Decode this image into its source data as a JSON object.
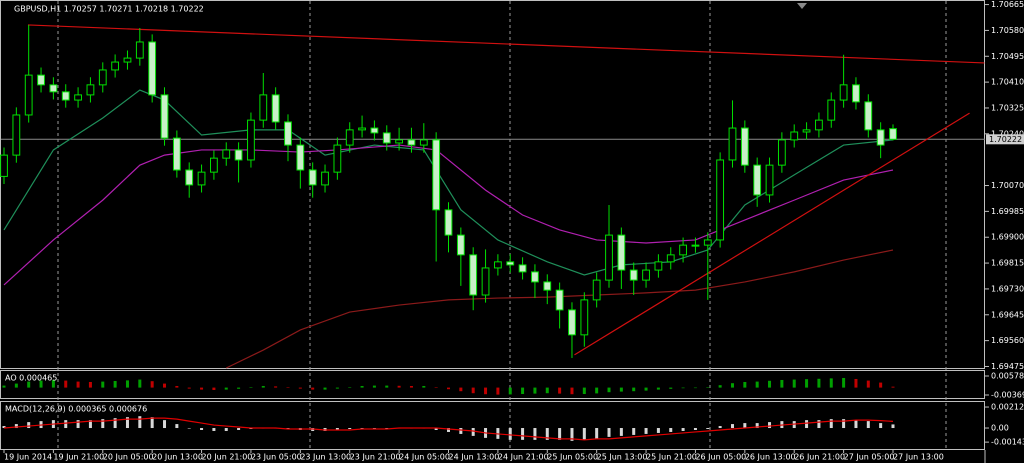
{
  "chart_data": [
    {
      "type": "candlestick",
      "title": "GBPUSD,H1 1.70257 1.70271 1.70218 1.70222",
      "categories": [
        "19 Jun 2014",
        null,
        null,
        null,
        "19 Jun 21:00",
        null,
        null,
        null,
        "20 Jun 05:00",
        null,
        null,
        null,
        "20 Jun 13:00",
        null,
        null,
        null,
        "20 Jun 21:00",
        null,
        null,
        null,
        "23 Jun 05:00",
        null,
        null,
        null,
        "23 Jun 13:00",
        null,
        null,
        null,
        "23 Jun 21:00",
        null,
        null,
        null,
        "24 Jun 05:00",
        null,
        null,
        null,
        "24 Jun 13:00",
        null,
        null,
        null,
        "24 Jun 21:00",
        null,
        null,
        null,
        "25 Jun 05:00",
        null,
        null,
        null,
        "25 Jun 13:00",
        null,
        null,
        null,
        "25 Jun 21:00",
        null,
        null,
        null,
        "26 Jun 05:00",
        null,
        null,
        null,
        "26 Jun 13:00",
        null,
        null,
        null,
        "26 Jun 21:00",
        null,
        null,
        null,
        "27 Jun 05:00",
        null,
        null,
        null,
        "27 Jun 13:00"
      ],
      "open": [
        1.701,
        1.7017,
        1.70302,
        1.70433,
        1.70401,
        1.70378,
        1.70351,
        1.70368,
        1.70401,
        1.7045,
        1.70476,
        1.70489,
        1.70542,
        1.70368,
        1.70226,
        1.70121,
        1.70072,
        1.70114,
        1.7016,
        1.70187,
        1.70154,
        1.70285,
        1.70368,
        1.70279,
        1.70203,
        1.70121,
        1.70072,
        1.70114,
        1.70203,
        1.70253,
        1.70259,
        1.70243,
        1.7021,
        1.7022,
        1.70203,
        1.7022,
        1.6999,
        1.69907,
        1.69842,
        1.6971,
        1.69799,
        1.69819,
        1.69809,
        1.69786,
        1.69753,
        1.69726,
        1.69661,
        1.69579,
        1.69694,
        1.69759,
        1.69907,
        1.69792,
        1.69759,
        1.69792,
        1.69819,
        1.69842,
        1.69874,
        1.69874,
        1.69891,
        1.70154,
        1.70259,
        1.70137,
        1.70039,
        1.70137,
        1.7022,
        1.70246,
        1.70253,
        1.70285,
        1.70351,
        1.70401,
        1.70345,
        1.70253,
        1.70257
      ],
      "high": [
        1.70195,
        1.70327,
        1.70598,
        1.70458,
        1.70426,
        1.70403,
        1.70393,
        1.70426,
        1.70475,
        1.70501,
        1.70514,
        1.70588,
        1.70567,
        1.70393,
        1.70251,
        1.70146,
        1.70139,
        1.70185,
        1.70212,
        1.70212,
        1.7031,
        1.7044,
        1.70393,
        1.70304,
        1.70228,
        1.70146,
        1.70139,
        1.70228,
        1.70278,
        1.703,
        1.70284,
        1.70268,
        1.7026,
        1.7026,
        1.70275,
        1.70245,
        1.70015,
        1.69932,
        1.69867,
        1.6986,
        1.69844,
        1.69844,
        1.69834,
        1.69811,
        1.69778,
        1.69751,
        1.69686,
        1.69719,
        1.69784,
        1.70006,
        1.69932,
        1.69817,
        1.69817,
        1.69844,
        1.69867,
        1.69899,
        1.69899,
        1.69916,
        1.70179,
        1.7035,
        1.70284,
        1.70162,
        1.70162,
        1.70245,
        1.70271,
        1.70278,
        1.7031,
        1.70376,
        1.705,
        1.70426,
        1.7037,
        1.70278,
        1.70271
      ],
      "low": [
        1.70075,
        1.70145,
        1.70277,
        1.70376,
        1.70353,
        1.70326,
        1.70326,
        1.70343,
        1.70376,
        1.70425,
        1.70451,
        1.70464,
        1.70343,
        1.70201,
        1.70096,
        1.7003,
        1.70047,
        1.70089,
        1.70135,
        1.7008,
        1.70129,
        1.7026,
        1.70254,
        1.7015,
        1.7006,
        1.7003,
        1.70047,
        1.70089,
        1.70178,
        1.70228,
        1.70218,
        1.70185,
        1.70185,
        1.70178,
        1.70178,
        1.6982,
        1.6985,
        1.6974,
        1.6966,
        1.69685,
        1.69774,
        1.69784,
        1.69761,
        1.697,
        1.6968,
        1.696,
        1.69503,
        1.6954,
        1.69669,
        1.69734,
        1.6973,
        1.6971,
        1.69734,
        1.69767,
        1.69794,
        1.69817,
        1.69849,
        1.69694,
        1.69866,
        1.70129,
        1.70112,
        1.7,
        1.70014,
        1.70112,
        1.70195,
        1.70221,
        1.70228,
        1.7026,
        1.70326,
        1.7032,
        1.70228,
        1.7016,
        1.70218
      ],
      "close": [
        1.7017,
        1.70302,
        1.70433,
        1.70401,
        1.70378,
        1.70351,
        1.70368,
        1.70401,
        1.7045,
        1.70476,
        1.70489,
        1.70542,
        1.70368,
        1.70226,
        1.70121,
        1.70072,
        1.70114,
        1.7016,
        1.70187,
        1.70154,
        1.70285,
        1.70368,
        1.70279,
        1.70203,
        1.70121,
        1.70072,
        1.70114,
        1.70203,
        1.70253,
        1.70259,
        1.70243,
        1.7021,
        1.7022,
        1.70203,
        1.7022,
        1.6999,
        1.69907,
        1.69842,
        1.6971,
        1.69799,
        1.69819,
        1.69809,
        1.69786,
        1.69753,
        1.69726,
        1.69661,
        1.69579,
        1.69694,
        1.69759,
        1.69907,
        1.69792,
        1.69759,
        1.69792,
        1.69819,
        1.69842,
        1.69874,
        1.69874,
        1.69891,
        1.70154,
        1.70259,
        1.70137,
        1.70039,
        1.70137,
        1.7022,
        1.70246,
        1.70253,
        1.70285,
        1.70351,
        1.70401,
        1.70345,
        1.70253,
        1.70203,
        1.70222
      ],
      "up_fill": "#000000",
      "down_fill": "#c8f0c8",
      "outline": "#00e000",
      "last_price": 1.70222,
      "ylim": [
        1.6947,
        1.7068
      ],
      "yticks": [
        1.70665,
        {
          "value": 1.7058,
          "label": "1.70580"
        },
        1.70495,
        {
          "value": 1.7041,
          "label": "1.70410"
        },
        1.70325,
        {
          "value": 1.7024,
          "label": "1.70240"
        },
        {
          "value": 1.7007,
          "label": "1.70070"
        },
        1.69985,
        {
          "value": 1.699,
          "label": "1.69900"
        },
        1.69815,
        {
          "value": 1.6973,
          "label": "1.69730"
        },
        1.69645,
        {
          "value": 1.6956,
          "label": "1.69560"
        },
        1.69475
      ],
      "overlays": [
        {
          "color": "#1f8f5a",
          "x": [
            0,
            4,
            8,
            11,
            13,
            16,
            20,
            23,
            26,
            30,
            34,
            37,
            40,
            44,
            47,
            50,
            54,
            57,
            60,
            64,
            68,
            72
          ],
          "values": [
            1.69924,
            1.70187,
            1.70292,
            1.70384,
            1.70351,
            1.70236,
            1.70253,
            1.70253,
            1.7017,
            1.70203,
            1.70187,
            1.6999,
            1.69891,
            1.69819,
            1.69776,
            1.69809,
            1.69819,
            1.69858,
            1.70006,
            1.70105,
            1.70203,
            1.7022
          ]
        },
        {
          "color": "#b020b0",
          "x": [
            0,
            4,
            8,
            11,
            13,
            16,
            20,
            24,
            27,
            32,
            35,
            39,
            42,
            45,
            48,
            52,
            56,
            58,
            61,
            64,
            68,
            72
          ],
          "values": [
            1.69743,
            1.69891,
            1.70022,
            1.70137,
            1.7017,
            1.70187,
            1.70187,
            1.7018,
            1.70187,
            1.70203,
            1.70187,
            1.70055,
            1.69973,
            1.69924,
            1.69891,
            1.69881,
            1.69891,
            1.69924,
            1.69973,
            1.70022,
            1.70088,
            1.70121
          ]
        },
        {
          "color": "#8b1a1a",
          "x": [
            18,
            21,
            24,
            28,
            32,
            36,
            40,
            44,
            48,
            52,
            56,
            60,
            64,
            68,
            72
          ],
          "values": [
            1.6947,
            1.69529,
            1.69595,
            1.69654,
            1.69677,
            1.69694,
            1.697,
            1.69703,
            1.6971,
            1.69717,
            1.69726,
            1.69753,
            1.69786,
            1.69825,
            1.69858
          ]
        }
      ],
      "trendlines": [
        {
          "color": "#d01010",
          "x": [
            1.94,
            79.4
          ],
          "values": [
            1.70598,
            1.70473
          ]
        },
        {
          "color": "#d01010",
          "x": [
            46.2,
            78.2
          ],
          "values": [
            1.69513,
            1.70308
          ]
        }
      ]
    },
    {
      "type": "bar",
      "title": "AO 0.000465",
      "up_color": "#00a000",
      "down_color": "#c00000",
      "values": [
        0.001,
        0.002,
        0.003,
        0.0035,
        0.0038,
        0.0035,
        0.003,
        0.0028,
        0.003,
        0.0033,
        0.0036,
        0.004,
        0.0032,
        0.002,
        0.0008,
        -0.0005,
        -0.001,
        -0.0012,
        -0.001,
        -0.0006,
        0.0002,
        0.0008,
        0.0006,
        0.0002,
        -0.0005,
        -0.001,
        -0.001,
        -0.0005,
        0.0002,
        0.0008,
        0.001,
        0.001,
        0.0009,
        0.0008,
        0.0008,
        0.0002,
        -0.0008,
        -0.0018,
        -0.0028,
        -0.0033,
        -0.0035,
        -0.0034,
        -0.0032,
        -0.003,
        -0.0028,
        -0.003,
        -0.0033,
        -0.0032,
        -0.0029,
        -0.0023,
        -0.002,
        -0.0018,
        -0.0015,
        -0.001,
        -0.0006,
        -0.0003,
        0,
        0.0002,
        0.0012,
        0.0022,
        0.0028,
        0.003,
        0.0034,
        0.0038,
        0.004,
        0.0042,
        0.0044,
        0.0046,
        0.0048,
        0.0043,
        0.0035,
        0.0025,
        0.000465
      ],
      "ylim": [
        -0.005194,
        0.008284
      ],
      "yticks": [
        0.005788,
        -0.003697
      ]
    },
    {
      "type": "macd",
      "title": "MACD(12,26,9) 0.000365 0.000676",
      "color": "#d8d8d8",
      "values": [
        0.0002,
        0.0004,
        0.0006,
        0.0007,
        0.0008,
        0.0008,
        0.0008,
        0.0008,
        0.0009,
        0.001,
        0.0011,
        0.0012,
        0.0011,
        0.0008,
        0.0004,
        0,
        -0.0002,
        -0.0003,
        -0.0003,
        -0.0002,
        -0.0001,
        0,
        0,
        -0.0001,
        -0.0002,
        -0.0003,
        -0.0003,
        -0.0002,
        -0.0001,
        0,
        0,
        0,
        0,
        0,
        0,
        -0.0002,
        -0.0004,
        -0.0006,
        -0.0008,
        -0.001,
        -0.0011,
        -0.0012,
        -0.0012,
        -0.0012,
        -0.0012,
        -0.0012,
        -0.0013,
        -0.0012,
        -0.0011,
        -0.0009,
        -0.0008,
        -0.0007,
        -0.0006,
        -0.0005,
        -0.0004,
        -0.0003,
        -0.0002,
        -0.0001,
        0.0002,
        0.0004,
        0.0005,
        0.0005,
        0.0006,
        0.0007,
        0.0007,
        0.0008,
        0.0008,
        0.0009,
        0.0009,
        0.0008,
        0.0007,
        0.0005,
        0.000365
      ],
      "signal": {
        "color": "#e00000",
        "values": [
          0,
          0.0001,
          0.0002,
          0.0003,
          0.0004,
          0.0005,
          0.0006,
          0.0007,
          0.0007,
          0.0008,
          0.0009,
          0.0009,
          0.001,
          0.001,
          0.0009,
          0.0007,
          0.0005,
          0.0003,
          0.0002,
          0.0001,
          0,
          0,
          0,
          -0.0001,
          -0.0001,
          -0.0001,
          -0.0002,
          -0.0002,
          -0.0002,
          -0.0001,
          -0.0001,
          -0.0001,
          0,
          0,
          0,
          0,
          -0.0001,
          -0.0002,
          -0.0003,
          -0.0005,
          -0.0006,
          -0.0007,
          -0.0008,
          -0.0009,
          -0.001,
          -0.0011,
          -0.0011,
          -0.0012,
          -0.0011,
          -0.0011,
          -0.001,
          -0.0009,
          -0.0008,
          -0.0007,
          -0.0006,
          -0.0005,
          -0.0004,
          -0.0003,
          -0.0002,
          -0.0001,
          0,
          0.0001,
          0.0002,
          0.0003,
          0.0004,
          0.0005,
          0.0006,
          0.0007,
          0.0007,
          0.0008,
          0.0008,
          0.00075,
          0.000676
        ]
      },
      "ylim": [
        -0.00223,
        0.00264
      ],
      "yticks": [
        0.002129,
        {
          "value": 0,
          "label": "0.00"
        },
        -0.00143
      ]
    }
  ]
}
